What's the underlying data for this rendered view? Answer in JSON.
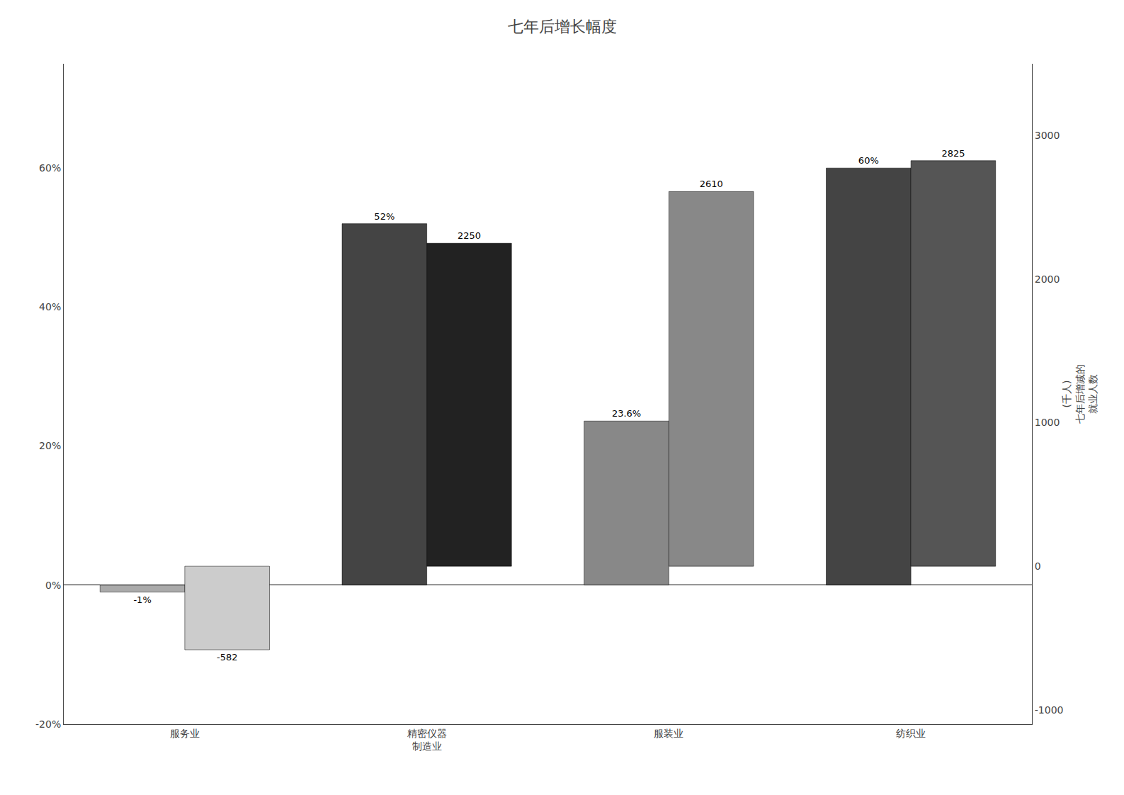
{
  "chart_data": {
    "type": "bar",
    "title": "七年后增长幅度",
    "y2label": "(千人)\n七年后增减的\n就业人数",
    "categories": [
      "服务业",
      "精密仪器\n制造业",
      "服装业",
      "纺织业"
    ],
    "series": [
      {
        "values": [
          -1,
          52,
          23.6,
          60
        ],
        "value_labels": [
          "-1%",
          "52%",
          "23.6%",
          "60%"
        ],
        "colors": [
          "#aaaaaa",
          "#444444",
          "#888888",
          "#444444"
        ]
      },
      {
        "axis": "y2",
        "values": [
          -582,
          2250,
          2610,
          2825
        ],
        "colors": [
          "#cccccc",
          "#222222",
          "#888888",
          "#555555"
        ]
      }
    ],
    "ylim": [
      -20,
      75
    ],
    "yticks": [
      {
        "value": -20,
        "label": "-20%"
      },
      {
        "value": 0,
        "label": "0%"
      },
      {
        "value": 20,
        "label": "20%"
      },
      {
        "value": 40,
        "label": "40%"
      },
      {
        "value": 60,
        "label": "60%"
      }
    ],
    "y2lim": [
      -1100,
      3500
    ],
    "y2ticks": [
      -1000,
      0,
      1000,
      2000,
      3000
    ],
    "data_labels": true,
    "grid": false
  }
}
